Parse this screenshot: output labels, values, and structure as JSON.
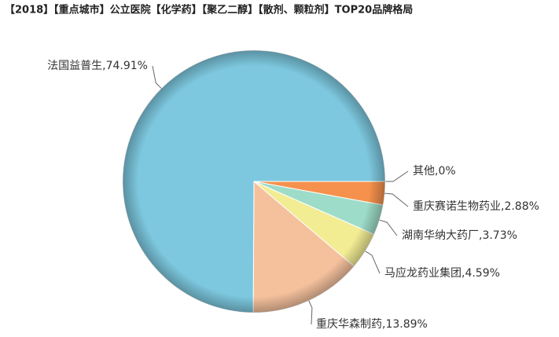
{
  "chart_data": {
    "type": "pie",
    "title": "【2018】【重点城市】公立医院【化学药】【聚乙二醇】【散剂、颗粒剂】TOP20品牌格局",
    "values": [
      0,
      2.88,
      3.73,
      4.59,
      13.89,
      74.91
    ],
    "value_labels": [
      "其他,0%",
      "重庆赛诺生物药业,2.88%",
      "湖南华纳大药厂,3.73%",
      "马应龙药业集团,4.59%",
      "重庆华森制药,13.89%",
      "法国益普生,74.91%"
    ],
    "colors": [
      "#b79ad6",
      "#f5914c",
      "#9ddcc8",
      "#f2ec93",
      "#f5c19d",
      "#7dc8df"
    ]
  }
}
